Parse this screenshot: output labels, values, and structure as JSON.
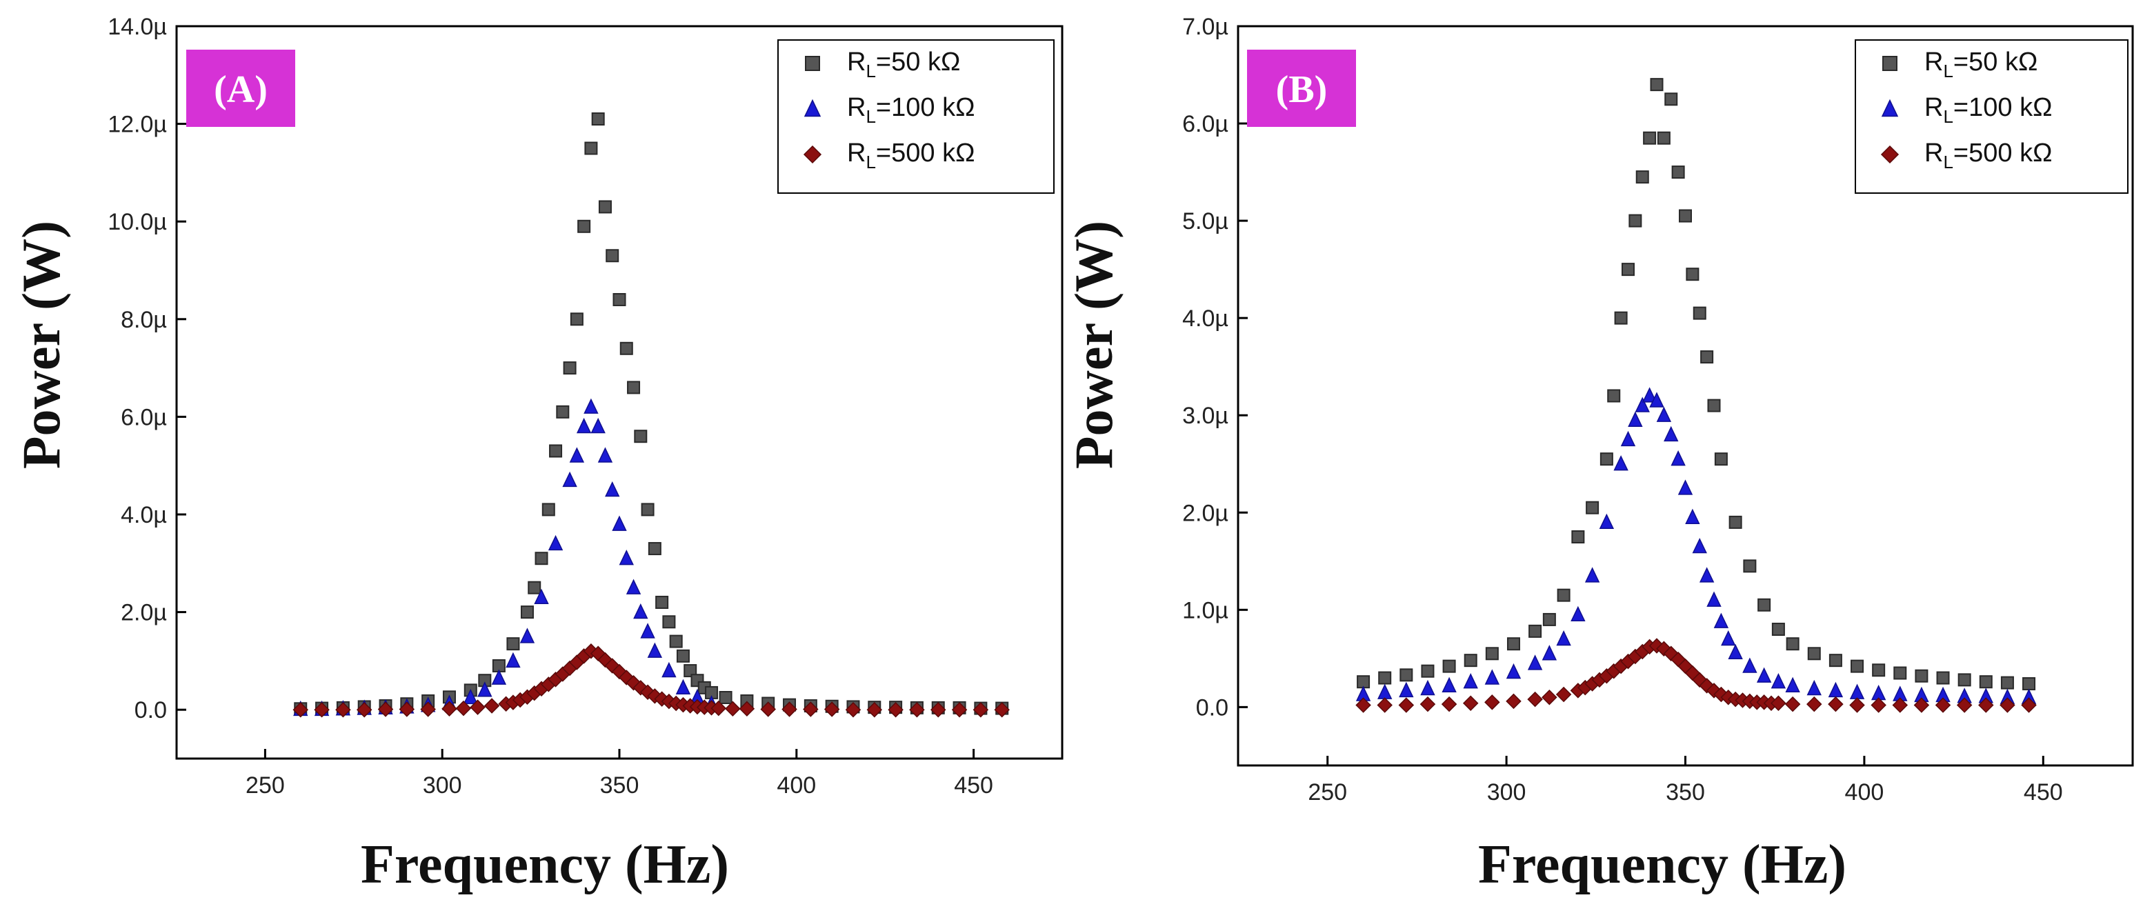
{
  "chart_data": [
    {
      "type": "scatter",
      "panel_label": "(A)",
      "xlabel": "Frequency (Hz)",
      "ylabel": "Power (W)",
      "xlim": [
        225,
        475
      ],
      "ylim": [
        -1.0,
        14.0
      ],
      "xticks": [
        250,
        300,
        350,
        400,
        450
      ],
      "xtick_labels": [
        "250",
        "300",
        "350",
        "400",
        "450"
      ],
      "yticks": [
        0,
        2,
        4,
        6,
        8,
        10,
        12,
        14
      ],
      "ytick_labels": [
        "0.0",
        "2.0µ",
        "4.0µ",
        "6.0µ",
        "8.0µ",
        "10.0µ",
        "12.0µ",
        "14.0µ"
      ],
      "grid": false,
      "legend_position": "top-right",
      "series": [
        {
          "name": "R_L=50 kΩ",
          "legend_main": "R",
          "legend_sub": "L",
          "legend_rest": "=50 kΩ",
          "color": "#555555",
          "marker": "square",
          "x": [
            260,
            266,
            272,
            278,
            284,
            290,
            296,
            302,
            308,
            312,
            316,
            320,
            324,
            326,
            328,
            330,
            332,
            334,
            336,
            338,
            340,
            342,
            344,
            346,
            348,
            350,
            352,
            354,
            356,
            358,
            360,
            362,
            364,
            366,
            368,
            370,
            372,
            374,
            376,
            380,
            386,
            392,
            398,
            404,
            410,
            416,
            422,
            428,
            434,
            440,
            446,
            452,
            458
          ],
          "y": [
            0.02,
            0.03,
            0.04,
            0.06,
            0.08,
            0.12,
            0.18,
            0.26,
            0.4,
            0.6,
            0.9,
            1.35,
            2.0,
            2.5,
            3.1,
            4.1,
            5.3,
            6.1,
            7.0,
            8.0,
            9.9,
            11.5,
            12.1,
            10.3,
            9.3,
            8.4,
            7.4,
            6.6,
            5.6,
            4.1,
            3.3,
            2.2,
            1.8,
            1.4,
            1.1,
            0.8,
            0.6,
            0.45,
            0.35,
            0.25,
            0.18,
            0.13,
            0.1,
            0.08,
            0.07,
            0.06,
            0.05,
            0.05,
            0.04,
            0.04,
            0.04,
            0.03,
            0.03
          ]
        },
        {
          "name": "R_L=100 kΩ",
          "legend_main": "R",
          "legend_sub": "L",
          "legend_rest": "=100 kΩ",
          "color": "#1a1ad4",
          "marker": "triangle",
          "x": [
            260,
            266,
            272,
            278,
            284,
            290,
            296,
            302,
            308,
            312,
            316,
            320,
            324,
            328,
            332,
            336,
            338,
            340,
            342,
            344,
            346,
            348,
            350,
            352,
            354,
            356,
            358,
            360,
            364,
            368,
            372,
            376
          ],
          "y": [
            0.01,
            0.01,
            0.02,
            0.03,
            0.04,
            0.06,
            0.09,
            0.13,
            0.25,
            0.4,
            0.65,
            1.0,
            1.5,
            2.3,
            3.4,
            4.7,
            5.2,
            5.8,
            6.2,
            5.8,
            5.2,
            4.5,
            3.8,
            3.1,
            2.5,
            2.0,
            1.6,
            1.2,
            0.8,
            0.45,
            0.25,
            0.12
          ]
        },
        {
          "name": "R_L=500 kΩ",
          "legend_main": "R",
          "legend_sub": "L",
          "legend_rest": "=500 kΩ",
          "color": "#8b1010",
          "marker": "diamond",
          "x": [
            260,
            266,
            272,
            278,
            284,
            290,
            296,
            302,
            306,
            310,
            314,
            318,
            320,
            322,
            324,
            326,
            328,
            330,
            332,
            334,
            336,
            338,
            340,
            342,
            344,
            346,
            348,
            350,
            352,
            354,
            356,
            358,
            360,
            362,
            364,
            366,
            368,
            370,
            372,
            374,
            376,
            378,
            382,
            386,
            392,
            398,
            404,
            410,
            416,
            422,
            428,
            434,
            440,
            446,
            452,
            458
          ],
          "y": [
            0.0,
            0.0,
            0.0,
            0.0,
            0.01,
            0.01,
            0.01,
            0.02,
            0.03,
            0.05,
            0.08,
            0.12,
            0.15,
            0.2,
            0.26,
            0.34,
            0.43,
            0.52,
            0.62,
            0.73,
            0.85,
            0.97,
            1.1,
            1.2,
            1.15,
            1.02,
            0.9,
            0.78,
            0.66,
            0.55,
            0.45,
            0.36,
            0.28,
            0.22,
            0.17,
            0.13,
            0.1,
            0.08,
            0.06,
            0.05,
            0.04,
            0.03,
            0.02,
            0.02,
            0.01,
            0.01,
            0.01,
            0.01,
            0.0,
            0.0,
            0.0,
            0.0,
            0.0,
            0.0,
            0.0,
            0.0
          ]
        }
      ]
    },
    {
      "type": "scatter",
      "panel_label": "(B)",
      "xlabel": "Frequency (Hz)",
      "ylabel": "Power (W)",
      "xlim": [
        225,
        475
      ],
      "ylim": [
        -0.6,
        7.0
      ],
      "xticks": [
        250,
        300,
        350,
        400,
        450
      ],
      "xtick_labels": [
        "250",
        "300",
        "350",
        "400",
        "450"
      ],
      "yticks": [
        0,
        1,
        2,
        3,
        4,
        5,
        6,
        7
      ],
      "ytick_labels": [
        "0.0",
        "1.0µ",
        "2.0µ",
        "3.0µ",
        "4.0µ",
        "5.0µ",
        "6.0µ",
        "7.0µ"
      ],
      "grid": false,
      "legend_position": "top-right",
      "series": [
        {
          "name": "R_L=50 kΩ",
          "legend_main": "R",
          "legend_sub": "L",
          "legend_rest": "=50 kΩ",
          "color": "#555555",
          "marker": "square",
          "x": [
            260,
            266,
            272,
            278,
            284,
            290,
            296,
            302,
            308,
            312,
            316,
            320,
            324,
            328,
            330,
            332,
            334,
            336,
            338,
            340,
            342,
            344,
            346,
            348,
            350,
            352,
            354,
            356,
            358,
            360,
            364,
            368,
            372,
            376,
            380,
            386,
            392,
            398,
            404,
            410,
            416,
            422,
            428,
            434,
            440,
            446
          ],
          "y": [
            0.26,
            0.3,
            0.33,
            0.37,
            0.42,
            0.48,
            0.55,
            0.65,
            0.78,
            0.9,
            1.15,
            1.75,
            2.05,
            2.55,
            3.2,
            4.0,
            4.5,
            5.0,
            5.45,
            5.85,
            6.4,
            5.85,
            6.25,
            5.5,
            5.05,
            4.45,
            4.05,
            3.6,
            3.1,
            2.55,
            1.9,
            1.45,
            1.05,
            0.8,
            0.65,
            0.55,
            0.48,
            0.42,
            0.38,
            0.35,
            0.32,
            0.3,
            0.28,
            0.26,
            0.25,
            0.24
          ]
        },
        {
          "name": "R_L=100 kΩ",
          "legend_main": "R",
          "legend_sub": "L",
          "legend_rest": "=100 kΩ",
          "color": "#1a1ad4",
          "marker": "triangle",
          "x": [
            260,
            266,
            272,
            278,
            284,
            290,
            296,
            302,
            308,
            312,
            316,
            320,
            324,
            328,
            332,
            334,
            336,
            338,
            340,
            342,
            344,
            346,
            348,
            350,
            352,
            354,
            356,
            358,
            360,
            362,
            364,
            368,
            372,
            376,
            380,
            386,
            392,
            398,
            404,
            410,
            416,
            422,
            428,
            434,
            440,
            446
          ],
          "y": [
            0.13,
            0.15,
            0.17,
            0.19,
            0.22,
            0.26,
            0.3,
            0.36,
            0.45,
            0.55,
            0.7,
            0.95,
            1.35,
            1.9,
            2.5,
            2.75,
            2.95,
            3.1,
            3.2,
            3.15,
            3.0,
            2.8,
            2.55,
            2.25,
            1.95,
            1.65,
            1.35,
            1.1,
            0.88,
            0.7,
            0.56,
            0.42,
            0.32,
            0.26,
            0.22,
            0.19,
            0.17,
            0.15,
            0.14,
            0.13,
            0.12,
            0.12,
            0.11,
            0.11,
            0.1,
            0.1
          ]
        },
        {
          "name": "R_L=500 kΩ",
          "legend_main": "R",
          "legend_sub": "L",
          "legend_rest": "=500 kΩ",
          "color": "#8b1010",
          "marker": "diamond",
          "x": [
            260,
            266,
            272,
            278,
            284,
            290,
            296,
            302,
            308,
            312,
            316,
            320,
            322,
            324,
            326,
            328,
            330,
            332,
            334,
            336,
            338,
            340,
            342,
            344,
            346,
            348,
            350,
            352,
            354,
            356,
            358,
            360,
            362,
            364,
            366,
            368,
            370,
            372,
            374,
            376,
            380,
            386,
            392,
            398,
            404,
            410,
            416,
            422,
            428,
            434,
            440,
            446
          ],
          "y": [
            0.02,
            0.02,
            0.02,
            0.03,
            0.03,
            0.04,
            0.05,
            0.06,
            0.08,
            0.1,
            0.13,
            0.17,
            0.2,
            0.24,
            0.28,
            0.32,
            0.37,
            0.42,
            0.47,
            0.52,
            0.57,
            0.62,
            0.63,
            0.6,
            0.55,
            0.49,
            0.42,
            0.35,
            0.28,
            0.22,
            0.17,
            0.13,
            0.1,
            0.08,
            0.07,
            0.06,
            0.05,
            0.05,
            0.04,
            0.04,
            0.03,
            0.03,
            0.03,
            0.02,
            0.02,
            0.02,
            0.02,
            0.02,
            0.02,
            0.02,
            0.02,
            0.02
          ]
        }
      ]
    }
  ]
}
